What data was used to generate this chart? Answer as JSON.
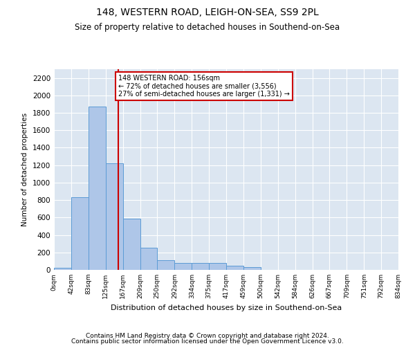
{
  "title1": "148, WESTERN ROAD, LEIGH-ON-SEA, SS9 2PL",
  "title2": "Size of property relative to detached houses in Southend-on-Sea",
  "xlabel": "Distribution of detached houses by size in Southend-on-Sea",
  "ylabel": "Number of detached properties",
  "footnote1": "Contains HM Land Registry data © Crown copyright and database right 2024.",
  "footnote2": "Contains public sector information licensed under the Open Government Licence v3.0.",
  "bin_edges": [
    0,
    42,
    83,
    125,
    167,
    209,
    250,
    292,
    334,
    375,
    417,
    459,
    500,
    542,
    584,
    626,
    667,
    709,
    751,
    792,
    834
  ],
  "bar_heights": [
    20,
    830,
    1870,
    1220,
    590,
    250,
    110,
    80,
    80,
    80,
    50,
    30,
    0,
    0,
    0,
    0,
    0,
    0,
    0,
    0
  ],
  "bar_color": "#aec6e8",
  "bar_edge_color": "#5b9bd5",
  "bg_color": "#dce6f1",
  "grid_color": "#ffffff",
  "property_line_x": 156,
  "property_line_color": "#cc0000",
  "annotation_text": "148 WESTERN ROAD: 156sqm\n← 72% of detached houses are smaller (3,556)\n27% of semi-detached houses are larger (1,331) →",
  "annotation_box_color": "#cc0000",
  "ylim": [
    0,
    2300
  ],
  "yticks": [
    0,
    200,
    400,
    600,
    800,
    1000,
    1200,
    1400,
    1600,
    1800,
    2000,
    2200
  ],
  "tick_labels": [
    "0sqm",
    "42sqm",
    "83sqm",
    "125sqm",
    "167sqm",
    "209sqm",
    "250sqm",
    "292sqm",
    "334sqm",
    "375sqm",
    "417sqm",
    "459sqm",
    "500sqm",
    "542sqm",
    "584sqm",
    "626sqm",
    "667sqm",
    "709sqm",
    "751sqm",
    "792sqm",
    "834sqm"
  ]
}
